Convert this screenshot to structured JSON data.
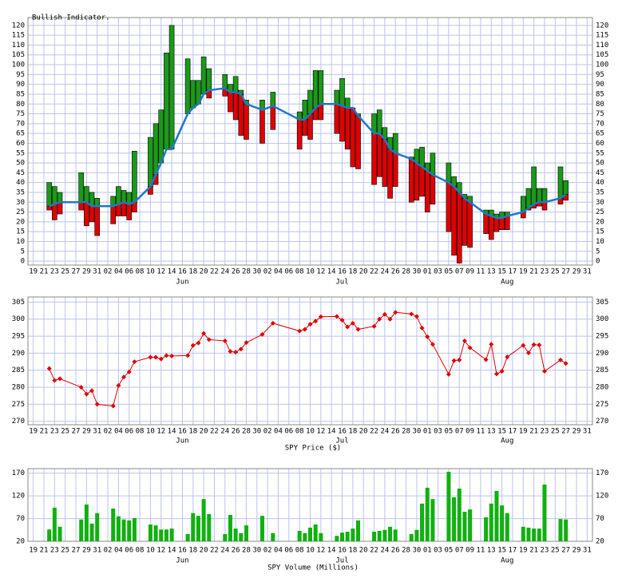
{
  "x_axis": {
    "x": [
      3,
      4,
      5,
      9,
      10,
      11,
      12,
      15,
      16,
      17,
      18,
      19,
      22,
      23,
      24,
      25,
      26,
      29,
      30,
      31,
      32,
      33,
      36,
      37,
      38,
      39,
      40,
      43,
      45,
      50,
      51,
      52,
      53,
      54,
      57,
      58,
      59,
      60,
      61,
      64,
      65,
      66,
      67,
      68,
      71,
      72,
      73,
      74,
      75,
      78,
      79,
      80,
      81,
      82,
      85,
      86,
      87,
      88,
      89,
      92,
      93,
      94,
      95,
      96,
      99,
      100
    ],
    "xlim": [
      -1,
      105
    ],
    "xticks": [
      {
        "value": 0,
        "label": "19"
      },
      {
        "value": 2,
        "label": "21"
      },
      {
        "value": 4,
        "label": "23"
      },
      {
        "value": 6,
        "label": "25"
      },
      {
        "value": 8,
        "label": "27"
      },
      {
        "value": 10,
        "label": "29"
      },
      {
        "value": 12,
        "label": "31"
      },
      {
        "value": 14,
        "label": "02"
      },
      {
        "value": 16,
        "label": "04"
      },
      {
        "value": 18,
        "label": "06"
      },
      {
        "value": 20,
        "label": "08"
      },
      {
        "value": 22,
        "label": "10"
      },
      {
        "value": 24,
        "label": "12"
      },
      {
        "value": 26,
        "label": "14"
      },
      {
        "value": 28,
        "label": "16"
      },
      {
        "value": 30,
        "label": "18"
      },
      {
        "value": 32,
        "label": "20"
      },
      {
        "value": 34,
        "label": "22"
      },
      {
        "value": 36,
        "label": "24"
      },
      {
        "value": 38,
        "label": "26"
      },
      {
        "value": 40,
        "label": "28"
      },
      {
        "value": 42,
        "label": "30"
      },
      {
        "value": 44,
        "label": "02"
      },
      {
        "value": 46,
        "label": "04"
      },
      {
        "value": 48,
        "label": "06"
      },
      {
        "value": 50,
        "label": "08"
      },
      {
        "value": 52,
        "label": "10"
      },
      {
        "value": 54,
        "label": "12"
      },
      {
        "value": 56,
        "label": "14"
      },
      {
        "value": 58,
        "label": "16"
      },
      {
        "value": 60,
        "label": "18"
      },
      {
        "value": 62,
        "label": "20"
      },
      {
        "value": 64,
        "label": "22"
      },
      {
        "value": 66,
        "label": "24"
      },
      {
        "value": 68,
        "label": "26"
      },
      {
        "value": 70,
        "label": "28"
      },
      {
        "value": 72,
        "label": "30"
      },
      {
        "value": 74,
        "label": "01"
      },
      {
        "value": 76,
        "label": "03"
      },
      {
        "value": 78,
        "label": "05"
      },
      {
        "value": 80,
        "label": "07"
      },
      {
        "value": 82,
        "label": "09"
      },
      {
        "value": 84,
        "label": "11"
      },
      {
        "value": 86,
        "label": "13"
      },
      {
        "value": 88,
        "label": "15"
      },
      {
        "value": 90,
        "label": "17"
      },
      {
        "value": 92,
        "label": "19"
      },
      {
        "value": 94,
        "label": "21"
      },
      {
        "value": 96,
        "label": "23"
      },
      {
        "value": 98,
        "label": "25"
      },
      {
        "value": 100,
        "label": "27"
      },
      {
        "value": 102,
        "label": "29"
      },
      {
        "value": 104,
        "label": "31"
      }
    ],
    "months": [
      {
        "value": 28,
        "label": "Jun"
      },
      {
        "value": 58,
        "label": "Jul"
      },
      {
        "value": 89,
        "label": "Aug"
      }
    ]
  },
  "chart_data": [
    {
      "type": "range_bar",
      "title": "Bullish Indicator.",
      "top": [
        40,
        38,
        35,
        45,
        38,
        35,
        32,
        33,
        38,
        36,
        35,
        56,
        63,
        70,
        77,
        106,
        120,
        103,
        92,
        92,
        104,
        98,
        95,
        90,
        94,
        87,
        82,
        82,
        86,
        76,
        82,
        87,
        97,
        97,
        87,
        93,
        83,
        78,
        75,
        75,
        77,
        68,
        63,
        65,
        53,
        57,
        58,
        50,
        55,
        50,
        43,
        40,
        34,
        33,
        26,
        26,
        24,
        25,
        25,
        33,
        37,
        48,
        37,
        37,
        48,
        41
      ],
      "split": [
        28,
        29,
        30,
        30,
        30,
        28,
        28,
        28,
        29,
        30,
        29,
        30,
        38,
        44,
        50,
        57,
        57,
        75,
        78,
        80,
        85,
        87,
        88,
        86,
        86,
        85,
        80,
        77,
        79,
        72,
        72,
        75,
        78,
        80,
        80,
        79,
        78,
        78,
        74,
        65,
        65,
        62,
        57,
        55,
        52,
        50,
        48,
        46,
        44,
        40,
        38,
        35,
        32,
        30,
        24,
        23,
        22,
        22,
        23,
        25,
        27,
        29,
        30,
        30,
        32,
        34
      ],
      "bottom": [
        26,
        21,
        24,
        26,
        18,
        20,
        13,
        19,
        23,
        23,
        21,
        25,
        34,
        39,
        50,
        57,
        57,
        75,
        78,
        80,
        85,
        83,
        84,
        76,
        72,
        64,
        62,
        60,
        67,
        57,
        64,
        62,
        72,
        72,
        65,
        61,
        57,
        48,
        47,
        39,
        43,
        38,
        32,
        38,
        30,
        31,
        33,
        25,
        29,
        15,
        3,
        -1,
        8,
        7,
        14,
        11,
        15,
        16,
        16,
        22,
        26,
        27,
        28,
        26,
        29,
        31
      ],
      "up_color": "#1a9a1a",
      "down_color": "#e00000",
      "line_color": "#1f78c8",
      "ylim": [
        -2,
        124
      ],
      "yticks": [
        0,
        5,
        10,
        15,
        20,
        25,
        30,
        35,
        40,
        45,
        50,
        55,
        60,
        65,
        70,
        75,
        80,
        85,
        90,
        95,
        100,
        105,
        110,
        115,
        120
      ],
      "grid": true
    },
    {
      "type": "line",
      "title": "SPY Price ($)",
      "values": [
        285.5,
        282,
        282.5,
        280,
        278,
        279,
        275,
        274.5,
        280.5,
        283,
        284.5,
        287.5,
        288.8,
        288.8,
        288.3,
        289.3,
        289.2,
        289.3,
        292.3,
        293,
        295.8,
        294,
        293.6,
        290.5,
        290.3,
        291.2,
        293.1,
        295.5,
        298.8,
        296.5,
        297,
        298.5,
        299.4,
        300.7,
        300.8,
        299.7,
        297.7,
        298.8,
        297,
        297.9,
        300,
        301.4,
        300,
        302,
        301.5,
        300.8,
        297.4,
        294.8,
        292.6,
        283.8,
        287.8,
        288,
        293.6,
        291.6,
        288.1,
        292.6,
        283.9,
        284.7,
        288.9,
        292.3,
        290.1,
        292.5,
        292.4,
        284.7,
        288,
        287
      ],
      "color": "#e00000",
      "ylim": [
        269,
        306.5
      ],
      "yticks": [
        270,
        275,
        280,
        285,
        290,
        295,
        300,
        305
      ],
      "grid": true
    },
    {
      "type": "bar",
      "title": "SPY Volume (Millions)",
      "values": [
        46,
        94,
        52,
        68,
        101,
        59,
        82,
        92,
        75,
        68,
        66,
        71,
        57,
        55,
        46,
        46,
        48,
        36,
        82,
        76,
        113,
        80,
        36,
        78,
        48,
        38,
        55,
        76,
        38,
        43,
        38,
        50,
        57,
        38,
        32,
        39,
        41,
        48,
        66,
        41,
        43,
        45,
        52,
        46,
        36,
        45,
        103,
        138,
        113,
        173,
        117,
        136,
        85,
        90,
        73,
        103,
        131,
        99,
        82,
        52,
        50,
        48,
        48,
        145,
        69,
        68
      ],
      "color": "#10b010",
      "ylim": [
        20,
        180
      ],
      "yticks": [
        20,
        70,
        120,
        170
      ],
      "grid": true
    }
  ]
}
